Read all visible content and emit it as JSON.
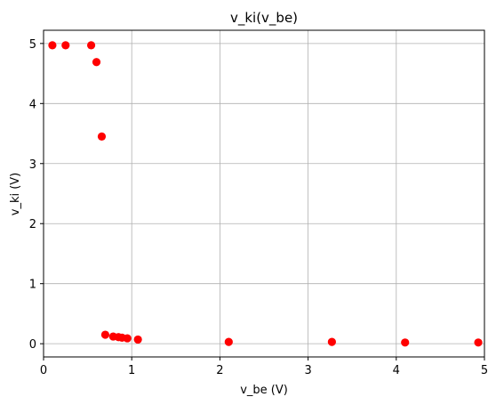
{
  "chart_data": {
    "type": "scatter",
    "title": "v_ki(v_be)",
    "xlabel": "v_be (V)",
    "ylabel": "v_ki (V)",
    "xlim": [
      0,
      5
    ],
    "ylim": [
      -0.22,
      5.22
    ],
    "xticks": [
      0,
      1,
      2,
      3,
      4,
      5
    ],
    "yticks": [
      0,
      1,
      2,
      3,
      4,
      5
    ],
    "grid": true,
    "marker_color": "#ff0000",
    "series": [
      {
        "x": [
          0.1,
          0.25,
          0.54,
          0.6,
          0.66,
          0.7,
          0.79,
          0.85,
          0.89,
          0.95,
          1.07,
          2.1,
          3.27,
          4.1,
          4.93
        ],
        "y": [
          4.97,
          4.97,
          4.97,
          4.69,
          3.45,
          0.15,
          0.12,
          0.11,
          0.1,
          0.09,
          0.07,
          0.03,
          0.03,
          0.02,
          0.02
        ]
      }
    ]
  }
}
